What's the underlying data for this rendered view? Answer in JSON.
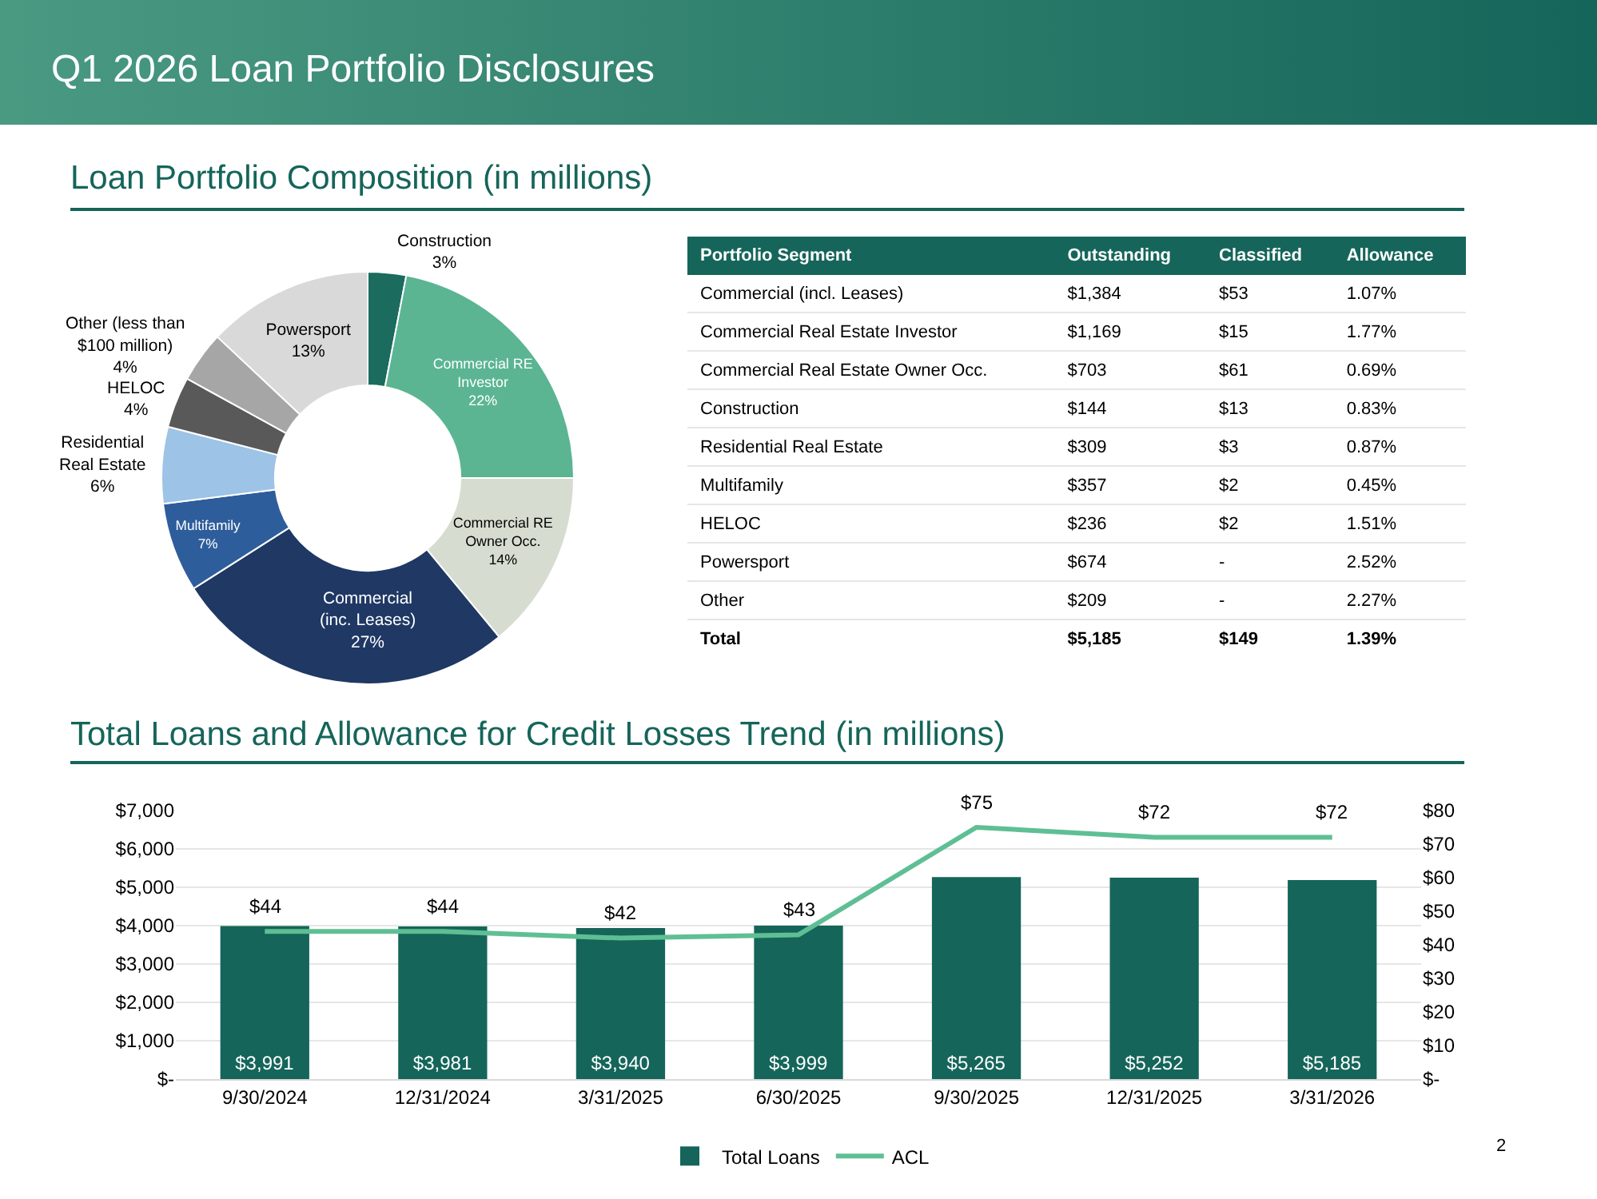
{
  "chart_data": [
    {
      "type": "donut",
      "title": "Q1 2026 Loan Portfolio Disclosures",
      "subtitle": "Loan Portfolio Composition (in millions)",
      "categories": [
        "Construction",
        "Commercial RE\nInvestor",
        "Commercial RE\nOwner Occ.",
        "Commercial\n(inc. Leases)",
        "Multifamily",
        "Residential\nReal Estate",
        "HELOC",
        "Other (less than\n$100 million)",
        "Powersport"
      ],
      "values": [
        3,
        22,
        14,
        27,
        7,
        6,
        4,
        4,
        13
      ],
      "value_labels": [
        "3%",
        "22%",
        "14%",
        "27%",
        "7%",
        "6%",
        "4%",
        "4%",
        "13%"
      ],
      "colors": [
        "#1b6b5e",
        "#5bb592",
        "#d6ddd0",
        "#1f3864",
        "#2e5d9c",
        "#9dc3e6",
        "#595959",
        "#a6a6a6",
        "#d9d9d9"
      ]
    },
    {
      "type": "other",
      "ylabel": "Portfolio Segment",
      "categories": [
        "Outstanding",
        "Classified",
        "Allowance"
      ],
      "y_categories": [
        "Commercial (incl. Leases)",
        "Commercial Real Estate Investor",
        "Commercial Real Estate Owner Occ.",
        "Construction",
        "Residential Real Estate",
        "Multifamily",
        "HELOC",
        "Powersport",
        "Other",
        "Total"
      ],
      "cell_labels": [
        [
          "$1,384",
          "$53",
          "1.07%"
        ],
        [
          "$1,169",
          "$15",
          "1.77%"
        ],
        [
          "$703",
          "$61",
          "0.69%"
        ],
        [
          "$144",
          "$13",
          "0.83%"
        ],
        [
          "$309",
          "$3",
          "0.87%"
        ],
        [
          "$357",
          "$2",
          "0.45%"
        ],
        [
          "$236",
          "$2",
          "1.51%"
        ],
        [
          "$674",
          "-",
          "2.52%"
        ],
        [
          "$209",
          "-",
          "2.27%"
        ],
        [
          "$5,185",
          "$149",
          "1.39%"
        ]
      ]
    },
    {
      "type": "bar",
      "title": "Total Loans and Allowance for Credit Losses Trend (in millions)",
      "categories": [
        "9/30/2024",
        "12/31/2024",
        "3/31/2025",
        "6/30/2025",
        "9/30/2025",
        "12/31/2025",
        "3/31/2026"
      ],
      "series": [
        {
          "name": "Total Loans",
          "type": "bar",
          "color": "#15655a",
          "values": [
            3991,
            3981,
            3940,
            3999,
            5265,
            5252,
            5185
          ],
          "value_labels": [
            "$3,991",
            "$3,981",
            "$3,940",
            "$3,999",
            "$5,265",
            "$5,252",
            "$5,185"
          ]
        },
        {
          "name": "ACL",
          "type": "line",
          "axis": "y2",
          "color": "#5fbf94",
          "values": [
            44,
            44,
            42,
            43,
            75,
            72,
            72
          ],
          "value_labels": [
            "$44",
            "$44",
            "$42",
            "$43",
            "$75",
            "$72",
            "$72"
          ]
        }
      ],
      "ylim": [
        0,
        7000
      ],
      "yticks": [
        {
          "value": 0,
          "label": "$-"
        },
        {
          "value": 1000,
          "label": "$1,000"
        },
        {
          "value": 2000,
          "label": "$2,000"
        },
        {
          "value": 3000,
          "label": "$3,000"
        },
        {
          "value": 4000,
          "label": "$4,000"
        },
        {
          "value": 5000,
          "label": "$5,000"
        },
        {
          "value": 6000,
          "label": "$6,000"
        },
        {
          "value": 7000,
          "label": "$7,000"
        }
      ],
      "y2lim": [
        0,
        80
      ],
      "y2ticks": [
        {
          "value": 0,
          "label": "$-"
        },
        {
          "value": 10,
          "label": "$10"
        },
        {
          "value": 20,
          "label": "$20"
        },
        {
          "value": 30,
          "label": "$30"
        },
        {
          "value": 40,
          "label": "$40"
        },
        {
          "value": 50,
          "label": "$50"
        },
        {
          "value": 60,
          "label": "$60"
        },
        {
          "value": 70,
          "label": "$70"
        },
        {
          "value": 80,
          "label": "$80"
        }
      ],
      "grid": "y",
      "legend": "bottom",
      "annotations": [
        "2"
      ]
    }
  ]
}
